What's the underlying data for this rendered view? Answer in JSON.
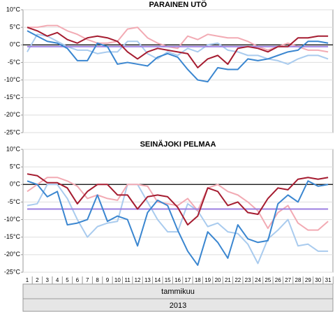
{
  "chart_data": [
    {
      "type": "line",
      "title": "PARAINEN UTÖ",
      "ylim": [
        -25,
        10
      ],
      "yticks": [
        {
          "value": 10,
          "label": "10°C"
        },
        {
          "value": 5,
          "label": "5°C"
        },
        {
          "value": 0,
          "label": "0°C"
        },
        {
          "value": -5,
          "label": "-5°C"
        },
        {
          "value": -10,
          "label": "-10°C"
        },
        {
          "value": -15,
          "label": "-15°C"
        },
        {
          "value": -20,
          "label": "-20°C"
        },
        {
          "value": -25,
          "label": "-25°C"
        }
      ],
      "grid": true,
      "series": [
        {
          "color": "#a9cbee",
          "values": [
            -2,
            3,
            2.5,
            1,
            -0.5,
            -1.5,
            -1.5,
            -2.5,
            -2,
            -2,
            1,
            1,
            -2.5,
            -4,
            -2,
            -3,
            -1,
            -2,
            0,
            0.5,
            -1.5,
            -2,
            -3,
            -3,
            -4,
            -4.5,
            -5.5,
            -4,
            -3,
            -3,
            -4
          ]
        },
        {
          "color": "#f2aab3",
          "values": [
            5,
            5,
            5.5,
            5.5,
            4,
            3,
            1.5,
            0.5,
            0.5,
            1,
            4.5,
            5,
            2,
            0.5,
            -0.5,
            -1,
            2.5,
            1.5,
            3,
            2.5,
            2,
            2,
            1,
            -0.5,
            -1.5,
            -0.5,
            0.5,
            -0.5,
            -1.5,
            -1.5,
            -2
          ]
        },
        {
          "color": "#9b7fe0",
          "values": [
            -0.5,
            -0.5,
            -0.5,
            -0.5,
            -0.5,
            -0.5,
            -0.5,
            -0.5,
            -0.5,
            -0.5,
            -0.5,
            -0.5,
            -0.5,
            -0.5,
            -0.5,
            -0.5,
            -0.5,
            -0.5,
            -0.5,
            -0.5,
            -0.5,
            -0.5,
            -0.5,
            -0.5,
            -0.5,
            -0.5,
            -0.5,
            -0.5,
            -0.5,
            -0.5,
            -0.5
          ]
        },
        {
          "color": "#3a86d0",
          "values": [
            4,
            2.5,
            1,
            0.5,
            -1,
            -4.5,
            -4.5,
            0.5,
            -0.5,
            -5.5,
            -5,
            -5.5,
            -6,
            -3.5,
            -2.5,
            -3.5,
            -7,
            -10,
            -10.5,
            -6.5,
            -7,
            -7,
            -4,
            -4.5,
            -4,
            -3,
            -2,
            -1.5,
            1,
            1,
            0.5
          ]
        },
        {
          "color": "#a51c30",
          "values": [
            5,
            4,
            2.5,
            3.5,
            1.5,
            0.5,
            2,
            2.5,
            2,
            1,
            -2,
            -4,
            -2,
            -1,
            -1.5,
            -2,
            -2.5,
            -6.5,
            -4,
            -3,
            -5.5,
            -1,
            -0.5,
            -1,
            -2,
            -0.5,
            -0.5,
            2,
            2,
            2.5,
            2.5
          ]
        }
      ]
    },
    {
      "type": "line",
      "title": "SEINÄJOKI PELMAA",
      "categories": [
        1,
        2,
        3,
        4,
        5,
        6,
        7,
        8,
        9,
        10,
        11,
        12,
        13,
        14,
        15,
        16,
        17,
        18,
        19,
        20,
        21,
        22,
        23,
        24,
        25,
        26,
        27,
        28,
        29,
        30,
        31
      ],
      "xlabel": "tammikuu",
      "xlabel_year": "2013",
      "ylim": [
        -25,
        10
      ],
      "yticks": [
        {
          "value": 10,
          "label": "10°C"
        },
        {
          "value": 5,
          "label": "5°C"
        },
        {
          "value": 0,
          "label": "0°C"
        },
        {
          "value": -5,
          "label": "-5°C"
        },
        {
          "value": -10,
          "label": "-10°C"
        },
        {
          "value": -15,
          "label": "-15°C"
        },
        {
          "value": -20,
          "label": "-20°C"
        },
        {
          "value": -25,
          "label": "-25°C"
        }
      ],
      "grid": true,
      "series": [
        {
          "color": "#a9cbee",
          "values": [
            -6,
            -5.5,
            0,
            0,
            -4,
            -10,
            -15,
            -12,
            -11,
            -10.5,
            0,
            0,
            -5,
            -10,
            -13.5,
            -13.5,
            -5.5,
            -7.5,
            -12,
            -11,
            -13.5,
            -14,
            -17,
            -22.5,
            -15.5,
            -13,
            -10,
            -17.5,
            -17,
            -19,
            -19
          ]
        },
        {
          "color": "#f2aab3",
          "values": [
            -2,
            0,
            2,
            2,
            1,
            -0.5,
            -4,
            -3,
            -4,
            -4.5,
            0,
            0,
            -0.5,
            -5,
            -5.5,
            -6,
            -4,
            -7.5,
            -1,
            0,
            -2,
            -3,
            -5,
            -7.5,
            -12.5,
            -8,
            -6,
            -11,
            -13,
            -13,
            -10.5
          ]
        },
        {
          "color": "#9b7fe0",
          "values": [
            -7,
            -7,
            -7,
            -7,
            -7,
            -7,
            -7,
            -7,
            -7,
            -7,
            -7,
            -7,
            -7,
            -7,
            -7,
            -7,
            -7,
            -7,
            -7,
            -7,
            -7,
            -7,
            -7,
            -7,
            -7,
            -7,
            -7,
            -7,
            -7,
            -7,
            -7
          ]
        },
        {
          "color": "#3a86d0",
          "values": [
            1,
            0,
            -3.5,
            -2,
            -11.5,
            -11,
            -10,
            -3,
            -10.5,
            -9,
            -10,
            -17.5,
            -8,
            -4.5,
            -6,
            -13,
            -19,
            -23,
            -13.5,
            -16.5,
            -21,
            -11.5,
            -15.5,
            -16.5,
            -16,
            -5.5,
            -3,
            -5,
            1,
            -0.5,
            0
          ]
        },
        {
          "color": "#a51c30",
          "values": [
            3,
            2.5,
            0.5,
            0.5,
            -1,
            -5.5,
            -2,
            0,
            0,
            -3,
            -3,
            -7,
            -3.5,
            -3,
            -3.5,
            -6.5,
            -11.5,
            -9,
            -1,
            -2,
            -6,
            -5,
            -8,
            -8.5,
            -4,
            -1,
            -1.5,
            1.5,
            2,
            1.5,
            2
          ]
        }
      ]
    }
  ]
}
